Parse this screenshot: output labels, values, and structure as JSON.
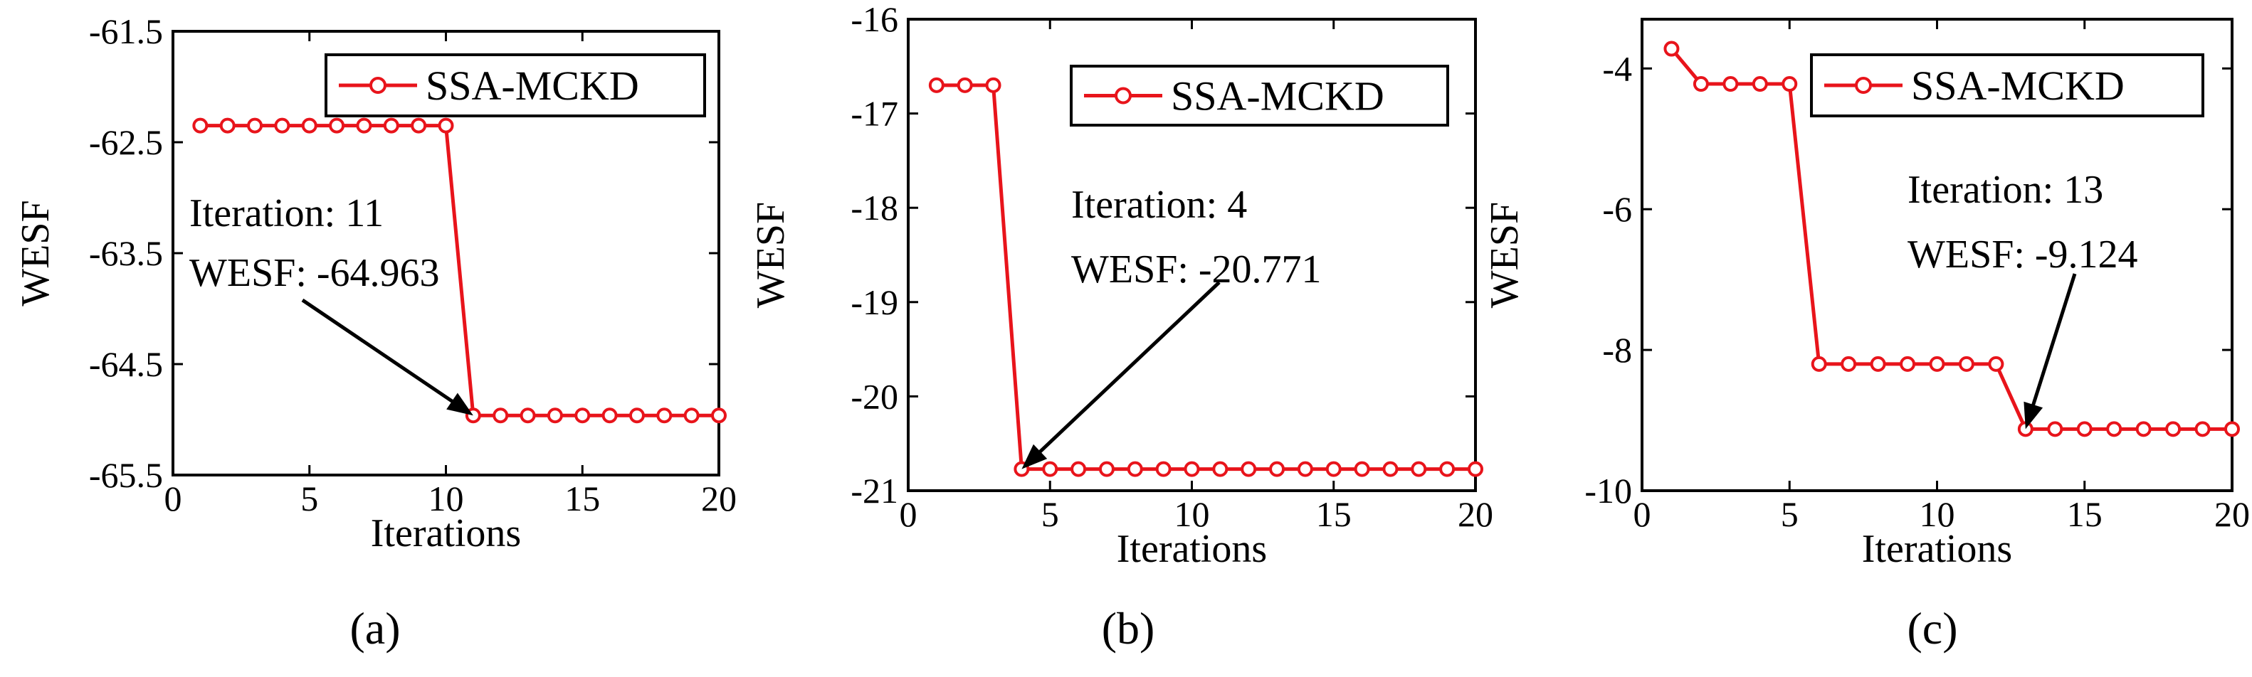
{
  "chart_data": [
    {
      "type": "line",
      "panel_label": "(a)",
      "xlabel": "Iterations",
      "ylabel": "WESF",
      "xlim": [
        0,
        20
      ],
      "ylim": [
        -65.5,
        -61.5
      ],
      "xticks": [
        0,
        5,
        10,
        15,
        20
      ],
      "yticks": [
        -65.5,
        -64.5,
        -63.5,
        -62.5,
        -61.5
      ],
      "ytick_labels": [
        "-65.5",
        "-64.5",
        "-63.5",
        "-62.5",
        "-61.5"
      ],
      "legend": "top-right",
      "series": [
        {
          "name": "SSA-MCKD",
          "color": "#e8141b",
          "x": [
            1,
            2,
            3,
            4,
            5,
            6,
            7,
            8,
            9,
            10,
            11,
            12,
            13,
            14,
            15,
            16,
            17,
            18,
            19,
            20
          ],
          "y": [
            -62.35,
            -62.35,
            -62.35,
            -62.35,
            -62.35,
            -62.35,
            -62.35,
            -62.35,
            -62.35,
            -62.35,
            -64.963,
            -64.963,
            -64.963,
            -64.963,
            -64.963,
            -64.963,
            -64.963,
            -64.963,
            -64.963,
            -64.963
          ]
        }
      ],
      "annotations": [
        {
          "lines": [
            "Iteration: 11",
            "WESF: -64.963"
          ],
          "target_x": 11,
          "target_y": -64.963
        }
      ]
    },
    {
      "type": "line",
      "panel_label": "(b)",
      "xlabel": "Iterations",
      "ylabel": "WESF",
      "xlim": [
        0,
        20
      ],
      "ylim": [
        -21,
        -16
      ],
      "xticks": [
        0,
        5,
        10,
        15,
        20
      ],
      "yticks": [
        -21,
        -20,
        -19,
        -18,
        -17,
        -16
      ],
      "ytick_labels": [
        "-21",
        "-20",
        "-19",
        "-18",
        "-17",
        "-16"
      ],
      "legend": "top-right",
      "series": [
        {
          "name": "SSA-MCKD",
          "color": "#e8141b",
          "x": [
            1,
            2,
            3,
            4,
            5,
            6,
            7,
            8,
            9,
            10,
            11,
            12,
            13,
            14,
            15,
            16,
            17,
            18,
            19,
            20
          ],
          "y": [
            -16.7,
            -16.7,
            -16.7,
            -20.771,
            -20.771,
            -20.771,
            -20.771,
            -20.771,
            -20.771,
            -20.771,
            -20.771,
            -20.771,
            -20.771,
            -20.771,
            -20.771,
            -20.771,
            -20.771,
            -20.771,
            -20.771,
            -20.771
          ]
        }
      ],
      "annotations": [
        {
          "lines": [
            "Iteration: 4",
            "WESF: -20.771"
          ],
          "target_x": 4,
          "target_y": -20.771
        }
      ]
    },
    {
      "type": "line",
      "panel_label": "(c)",
      "xlabel": "Iterations",
      "ylabel": "WESF",
      "xlim": [
        0,
        20
      ],
      "ylim": [
        -10,
        -3.3
      ],
      "xticks": [
        0,
        5,
        10,
        15,
        20
      ],
      "yticks": [
        -10,
        -8,
        -6,
        -4
      ],
      "ytick_labels": [
        "-10",
        "-8",
        "-6",
        "-4"
      ],
      "legend": "top-right",
      "series": [
        {
          "name": "SSA-MCKD",
          "color": "#e8141b",
          "x": [
            1,
            2,
            3,
            4,
            5,
            6,
            7,
            8,
            9,
            10,
            11,
            12,
            13,
            14,
            15,
            16,
            17,
            18,
            19,
            20
          ],
          "y": [
            -3.72,
            -4.22,
            -4.22,
            -4.22,
            -4.22,
            -8.2,
            -8.2,
            -8.2,
            -8.2,
            -8.2,
            -8.2,
            -8.2,
            -9.124,
            -9.124,
            -9.124,
            -9.124,
            -9.124,
            -9.124,
            -9.124,
            -9.124
          ]
        }
      ],
      "annotations": [
        {
          "lines": [
            "Iteration: 13",
            "WESF: -9.124"
          ],
          "target_x": 13,
          "target_y": -9.124
        }
      ]
    }
  ]
}
